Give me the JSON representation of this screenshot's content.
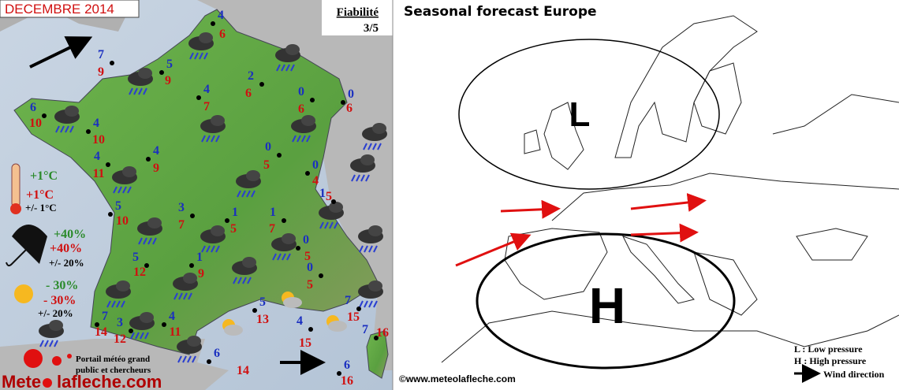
{
  "left_panel": {
    "title": "DECEMBRE 2014",
    "reliability_label": "Fiabilité",
    "reliability_value": "3/5",
    "legend": {
      "temp_cold": "+1°C",
      "temp_warm": "+1°C",
      "temp_spread": "+/- 1°C",
      "rain_dry": "+40%",
      "rain_wet": "+40%",
      "rain_spread": "+/- 20%",
      "sun_low": "- 30%",
      "sun_high": "- 30%",
      "sun_spread": "+/- 20%"
    },
    "portal_text_1": "Portail météo grand",
    "portal_text_2": "public et chercheurs",
    "logo_text_1": "Mete",
    "logo_text_2": "lafleche.com",
    "stations": [
      {
        "min": 4,
        "max": 6
      },
      {
        "min": 7,
        "max": 9
      },
      {
        "min": 5,
        "max": 9
      },
      {
        "min": 2,
        "max": 6
      },
      {
        "min": 4,
        "max": 7
      },
      {
        "min": 0,
        "max": 6
      },
      {
        "min": 0,
        "max": 6
      },
      {
        "min": 6,
        "max": 10
      },
      {
        "min": 4,
        "max": 10
      },
      {
        "min": 0,
        "max": 5
      },
      {
        "min": 4,
        "max": 9
      },
      {
        "min": 4,
        "max": 11
      },
      {
        "min": 0,
        "max": 4
      },
      {
        "min": 1,
        "max": 5
      },
      {
        "min": 5,
        "max": 10
      },
      {
        "min": 3,
        "max": 7
      },
      {
        "min": 1,
        "max": 5
      },
      {
        "min": 1,
        "max": 7
      },
      {
        "min": 0,
        "max": 5
      },
      {
        "min": 5,
        "max": 12
      },
      {
        "min": 1,
        "max": 9
      },
      {
        "min": 0,
        "max": 5
      },
      {
        "min": 5,
        "max": 13
      },
      {
        "min": 7,
        "max": 15
      },
      {
        "min": 7,
        "max": 14
      },
      {
        "min": 3,
        "max": 12
      },
      {
        "min": 4,
        "max": 11
      },
      {
        "min": 4,
        "max": 15
      },
      {
        "min": 6,
        "max": 14
      },
      {
        "min": 7,
        "max": 16
      },
      {
        "min": 6,
        "max": 16
      }
    ]
  },
  "right_panel": {
    "title": "Seasonal  forecast Europe",
    "low_label": "L",
    "high_label": "H",
    "legend_low": "L : Low pressure",
    "legend_high": "H : High pressure",
    "legend_wind": "Wind direction",
    "copyright": "©www.meteolafleche.com"
  }
}
